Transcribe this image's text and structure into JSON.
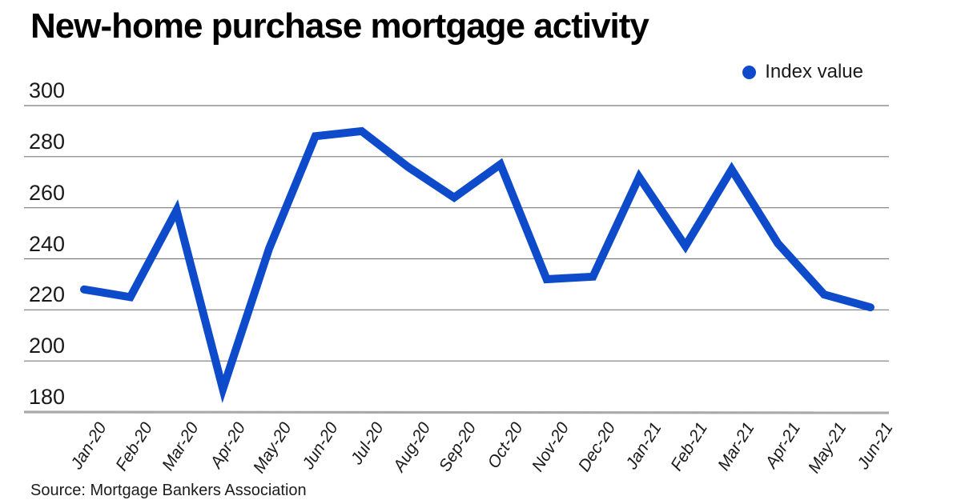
{
  "title": "New-home purchase mortgage activity",
  "legend": {
    "label": "Index value"
  },
  "source": "Source: Mortgage Bankers Association",
  "colors": {
    "line": "#0e4bcb",
    "grid": "#7b7b7b",
    "baseline": "#a9a9a9",
    "text": "#1a1a1a"
  },
  "chart_data": {
    "type": "line",
    "title": "New-home purchase mortgage activity",
    "categories": [
      "Jan-20",
      "Feb-20",
      "Mar-20",
      "Apr-20",
      "May-20",
      "Jun-20",
      "Jul-20",
      "Aug-20",
      "Sep-20",
      "Oct-20",
      "Nov-20",
      "Dec-20",
      "Jan-21",
      "Feb-21",
      "Mar-21",
      "Apr-21",
      "May-21",
      "Jun-21"
    ],
    "series": [
      {
        "name": "Index value",
        "values": [
          228,
          225,
          259,
          189,
          244,
          288,
          290,
          276,
          264,
          277,
          232,
          233,
          272,
          245,
          275,
          246,
          226,
          221
        ]
      }
    ],
    "xlabel": "",
    "ylabel": "",
    "ylim": [
      180,
      300
    ],
    "yticks": [
      300,
      280,
      260,
      240,
      220,
      200,
      180
    ],
    "grid": "horizontal",
    "legend_position": "top-right",
    "source": "Source: Mortgage Bankers Association"
  }
}
